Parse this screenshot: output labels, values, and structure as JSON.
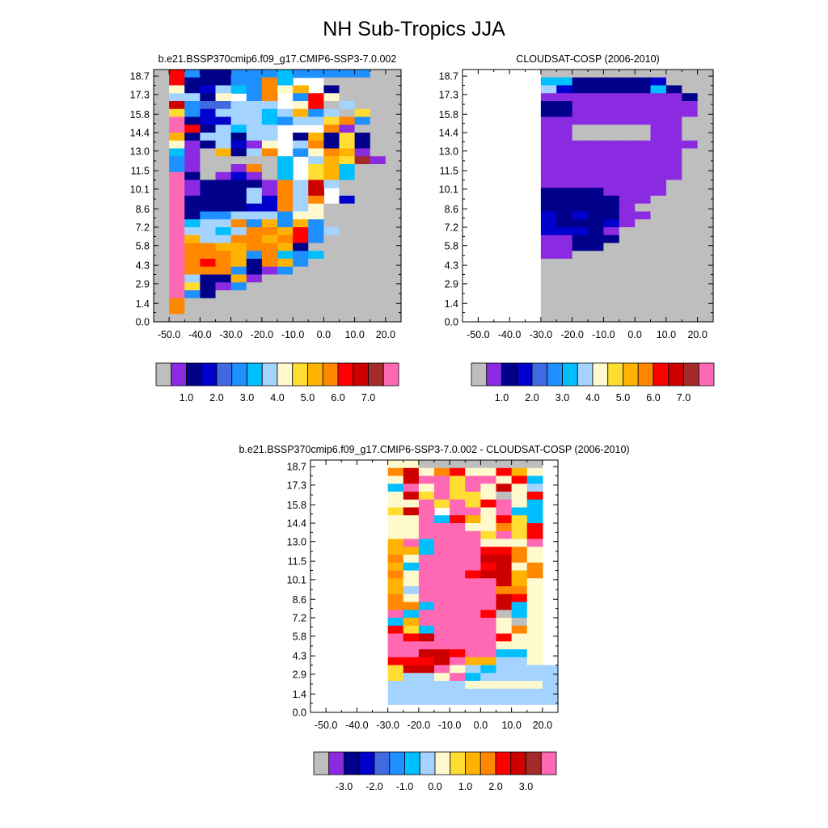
{
  "page": {
    "title": "NH Sub-Tropics JJA"
  },
  "chart_data": [
    {
      "type": "heatmap",
      "title": "b.e21.BSSP370cmip6.f09_g17.CMIP6-SSP3-7.0.002",
      "xlabel": "",
      "ylabel": "",
      "xlim": [
        -55,
        25
      ],
      "ylim": [
        0,
        19.2
      ],
      "x_ticks": [
        "-50.0",
        "-40.0",
        "-30.0",
        "-20.0",
        "-10.0",
        "0.0",
        "10.0",
        "20.0"
      ],
      "x_tick_values": [
        -50,
        -40,
        -30,
        -20,
        -10,
        0,
        10,
        20
      ],
      "y_ticks": [
        "0.0",
        "1.4",
        "2.9",
        "4.3",
        "5.8",
        "7.2",
        "8.6",
        "10.1",
        "11.5",
        "13.0",
        "14.4",
        "15.8",
        "17.3",
        "18.7"
      ],
      "y_tick_values": [
        0,
        1.4,
        2.9,
        4.3,
        5.8,
        7.2,
        8.6,
        10.1,
        11.5,
        13.0,
        14.4,
        15.8,
        17.3,
        18.7
      ],
      "x_edges": [
        -55,
        -50,
        -45,
        -40,
        -35,
        -30,
        -25,
        -20,
        -15,
        -10,
        -5,
        0,
        5,
        10,
        15,
        20,
        25
      ],
      "y_edges": [
        0,
        0.6,
        1.2,
        1.8,
        2.4,
        3.0,
        3.6,
        4.2,
        4.8,
        5.4,
        6.0,
        6.6,
        7.2,
        7.8,
        8.4,
        9.0,
        9.6,
        10.2,
        10.8,
        11.4,
        12.0,
        12.6,
        13.2,
        13.8,
        14.4,
        15.0,
        15.6,
        16.2,
        16.8,
        17.4,
        18.0,
        18.6,
        19.2
      ],
      "cells": [
        "-ia11aabcbbbaa--",
        "-r111bbhc99---**",
        "-e12dcbheg71---*",
        "-dd1e64h9bie---*",
        "-k433ddd9ei-d--*",
        "-fa2dddcdgbd-f-*",
        "-j122ddcbddfha-*",
        "-ji1dcdd998h0--*",
        "-g1dd1dd91g1f1-*",
        "-e01d20e9dh1f1-*",
        "-c0-g1dh8beht0-*",
        "-b0-----c8dgfs0*",
        "-b0--0h-c7fgc--*",
        "-j1-020-c7fgc--*",
        "-j011110hdkd-***",
        "-j0111d0hdk7-***",
        "-j1111d2hdh72***",
        "-j111122hde-****",
        "-j1aadddbee-****",
        "-jcddhbgbgb-****",
        "-jddcdhhgibd****",
        "-jgddhhghib*****",
        "-jhhgghhg1******",
        "-jhhhgahcbc*****",
        "-jhihg1hgb******",
        "-jhhha10a*******",
        "-jd11g0*********",
        "-jf10a**********",
        "-jb1************",
        "-h**************",
        "-h**************",
        "****************"
      ]
    },
    {
      "type": "heatmap",
      "title": "CLOUDSAT-COSP (2006-2010)",
      "xlabel": "",
      "ylabel": "",
      "xlim": [
        -55,
        25
      ],
      "ylim": [
        0,
        19.2
      ],
      "x_ticks": [
        "-50.0",
        "-40.0",
        "-30.0",
        "-20.0",
        "-10.0",
        "0.0",
        "10.0",
        "20.0"
      ],
      "x_tick_values": [
        -50,
        -40,
        -30,
        -20,
        -10,
        0,
        10,
        20
      ],
      "y_ticks": [
        "0.0",
        "1.4",
        "2.9",
        "4.3",
        "5.8",
        "7.2",
        "8.6",
        "10.1",
        "11.5",
        "13.0",
        "14.4",
        "15.8",
        "17.3",
        "18.7"
      ],
      "y_tick_values": [
        0,
        1.4,
        2.9,
        4.3,
        5.8,
        7.2,
        8.6,
        10.1,
        11.5,
        13.0,
        14.4,
        15.8,
        17.3,
        18.7
      ],
      "x_edges": [
        -55,
        -50,
        -45,
        -40,
        -35,
        -30,
        -25,
        -20,
        -15,
        -10,
        -5,
        0,
        5,
        10,
        15,
        20,
        25
      ],
      "y_edges": [
        0,
        0.6,
        1.2,
        1.8,
        2.4,
        3.0,
        3.6,
        4.2,
        4.8,
        5.4,
        6.0,
        6.6,
        7.2,
        7.8,
        8.4,
        9.0,
        9.6,
        10.2,
        10.8,
        11.4,
        12.0,
        12.6,
        13.2,
        13.8,
        14.4,
        15.0,
        15.6,
        16.2,
        16.8,
        17.4,
        18.0,
        18.6,
        19.2
      ],
      "cells": [
        ".....___________",
        ".....cc111112---",
        ".....d211111c1--",
        ".....0000000001-",
        ".....1100000000-",
        ".....1100000000-",
        ".....000000000--",
        ".....00-----00--",
        ".....00-----00--",
        ".....0000000000-",
        ".....000000000--",
        ".....000000000--",
        ".....000000000--",
        ".....000000000--",
        ".....00000000---",
        ".....11110000---",
        ".....1111100----",
        ".....111110-----",
        ".....2121100----",
        ".....211120-----",
        ".....22210------",
        ".....00111------",
        ".....0011-------",
        ".....00---------",
        ".....-----------",
        ".....-----------",
        ".....-----------",
        ".....-----------",
        ".....-----------",
        ".....-----------",
        ".....-----------",
        ".....-----------"
      ]
    },
    {
      "type": "heatmap",
      "title": "b.e21.BSSP370cmip6.f09_g17.CMIP6-SSP3-7.0.002 - CLOUDSAT-COSP (2006-2010)",
      "xlabel": "",
      "ylabel": "",
      "xlim": [
        -55,
        25
      ],
      "ylim": [
        0,
        19.2
      ],
      "x_ticks": [
        "-50.0",
        "-40.0",
        "-30.0",
        "-20.0",
        "-10.0",
        "0.0",
        "10.0",
        "20.0"
      ],
      "x_tick_values": [
        -50,
        -40,
        -30,
        -20,
        -10,
        0,
        10,
        20
      ],
      "y_ticks": [
        "0.0",
        "1.4",
        "2.9",
        "4.3",
        "5.8",
        "7.2",
        "8.6",
        "10.1",
        "11.5",
        "13.0",
        "14.4",
        "15.8",
        "17.3",
        "18.7"
      ],
      "y_tick_values": [
        0,
        1.4,
        2.9,
        4.3,
        5.8,
        7.2,
        8.6,
        10.1,
        11.5,
        13.0,
        14.4,
        15.8,
        17.3,
        18.7
      ],
      "x_edges": [
        -55,
        -50,
        -45,
        -40,
        -35,
        -30,
        -25,
        -20,
        -15,
        -10,
        -5,
        0,
        5,
        10,
        15,
        20,
        25
      ],
      "y_edges": [
        0,
        0.6,
        1.2,
        1.8,
        2.4,
        3.0,
        3.6,
        4.2,
        4.8,
        5.4,
        6.0,
        6.6,
        7.2,
        7.8,
        8.4,
        9.0,
        9.6,
        10.2,
        10.8,
        11.4,
        12.0,
        12.6,
        13.2,
        13.8,
        14.4,
        15.0,
        15.6,
        16.2,
        16.8,
        17.4,
        18.0,
        18.6,
        19.2
      ],
      "cells": [
        ".....7700000000.",
        ".....gd7ge77ea7.",
        ".....7d9f8ff7e6.",
        ".....697f8f7d75.",
        ".....7d8f88707e.",
        ".....7798f8ef76.",
        ".....8dfif97f66.",
        ".....7796ea7e86.",
        ".....7799977b8e.",
        ".....7799998f8e.",
        ".....a9699f777f.",
        ".....aa69ffeeb7.",
        ".....b799ffddb7.",
        ".....a39f9fed7b.",
        ".....b79ffeddab.",
        ".....a49ffffda4.",
        ".....a59ffffbb4.",
        ".....b79ffffdc4.",
        ".....bb6ffffd64.",
        ".....969fffe064.",
        ".....6a9ffff704.",
        ".....e86ffff7b4.",
        ".....fedffffc74.",
        ".....ff9ff9f774.",
        ".....ffddeff664.",
        ".....eecdfaa554.",
        ".....8ddf7565555",
        ".....85579655555",
        ".....55555444445",
        ".....55555555555",
        ".....55555555555",
        "................"
      ]
    }
  ],
  "colorbars": [
    {
      "colors": [
        "#bebebe",
        "#8a2be2",
        "#00008b",
        "#0000cd",
        "#4169e1",
        "#1e90ff",
        "#00bfff",
        "#a4d3ff",
        "#fffacd",
        "#ffdd33",
        "#ffb300",
        "#ff8800",
        "#ff0000",
        "#cd0000",
        "#a52a2a",
        "#ff69b4"
      ],
      "labels": [
        "1.0",
        "2.0",
        "3.0",
        "4.0",
        "5.0",
        "6.0",
        "7.0"
      ]
    },
    {
      "colors": [
        "#bebebe",
        "#8a2be2",
        "#00008b",
        "#0000cd",
        "#4169e1",
        "#1e90ff",
        "#00bfff",
        "#a4d3ff",
        "#fffacd",
        "#ffdd33",
        "#ffb300",
        "#ff8800",
        "#ff0000",
        "#cd0000",
        "#a52a2a",
        "#ff69b4"
      ],
      "labels": [
        "1.0",
        "2.0",
        "3.0",
        "4.0",
        "5.0",
        "6.0",
        "7.0"
      ]
    },
    {
      "colors": [
        "#bebebe",
        "#8a2be2",
        "#00008b",
        "#0000cd",
        "#4169e1",
        "#1e90ff",
        "#00bfff",
        "#a4d3ff",
        "#fffacd",
        "#ffdd33",
        "#ffb300",
        "#ff8800",
        "#ff0000",
        "#cd0000",
        "#a52a2a",
        "#ff69b4"
      ],
      "labels": [
        "-3.0",
        "-2.0",
        "-1.0",
        "0.0",
        "1.0",
        "2.0",
        "3.0"
      ]
    }
  ],
  "palettes": {
    "absolute": {
      "-": "#bebebe",
      "0": "#8a2be2",
      "1": "#00008b",
      "2": "#0000cd",
      "3": "#4169e1",
      "4": "#1e90ff",
      "a": "#1e90ff",
      "b": "#1e90ff",
      "c": "#00bfff",
      "d": "#a4d3ff",
      "e": "#fffacd",
      "f": "#ffdd33",
      "g": "#ffb300",
      "h": "#ff8800",
      "i": "#ff0000",
      "j": "#ff69b4",
      "k": "#cd0000",
      "r": "#ff0000",
      "s": "#a52a2a",
      "t": "#ffb300",
      "*": "#bebebe",
      "_": "#bebebe"
    },
    "difference": {
      "0": "#bebebe",
      "4": "#fffacd",
      "5": "#a4d3ff",
      "6": "#00bfff",
      "7": "#fffacd",
      "8": "#ffdd33",
      "9": "#ff69b4",
      "a": "#ffb300",
      "b": "#ff8800",
      "c": "#ff0000",
      "d": "#cd0000",
      "e": "#ff0000",
      "f": "#ff69b4",
      "g": "#ff8800",
      "3": "#00bfff"
    }
  }
}
